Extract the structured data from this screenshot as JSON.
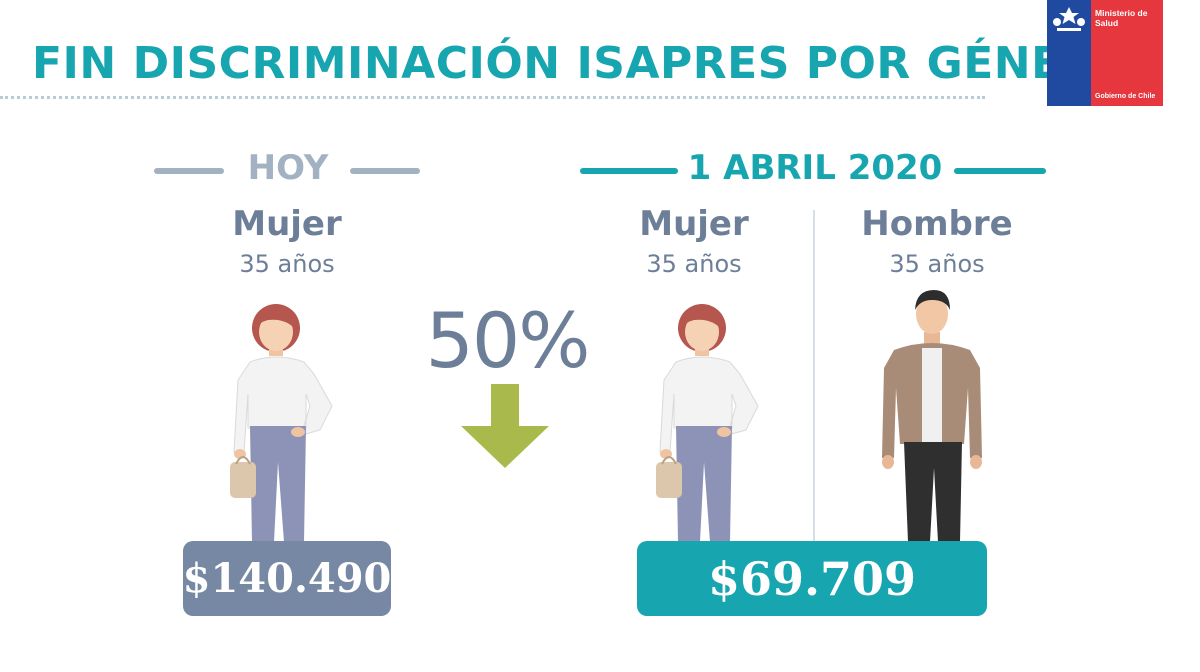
{
  "header": {
    "title": "FIN DISCRIMINACIÓN ISAPRES POR GÉNERO"
  },
  "logo": {
    "line1": "Ministerio de",
    "line2": "Salud",
    "footer": "Gobierno de Chile"
  },
  "today": {
    "heading": "HOY",
    "person_label": "Mujer",
    "age": "35 años",
    "price": "$140.490"
  },
  "reduction": {
    "percent": "50%"
  },
  "future": {
    "heading": "1 ABRIL 2020",
    "woman_label": "Mujer",
    "woman_age": "35 años",
    "man_label": "Hombre",
    "man_age": "35 años",
    "price": "$69.709"
  },
  "colors": {
    "teal": "#17a5b0",
    "slate": "#6d7f98",
    "arrow_green": "#a9b94b",
    "logo_blue": "#1f4aa0",
    "logo_red": "#e5373d"
  }
}
